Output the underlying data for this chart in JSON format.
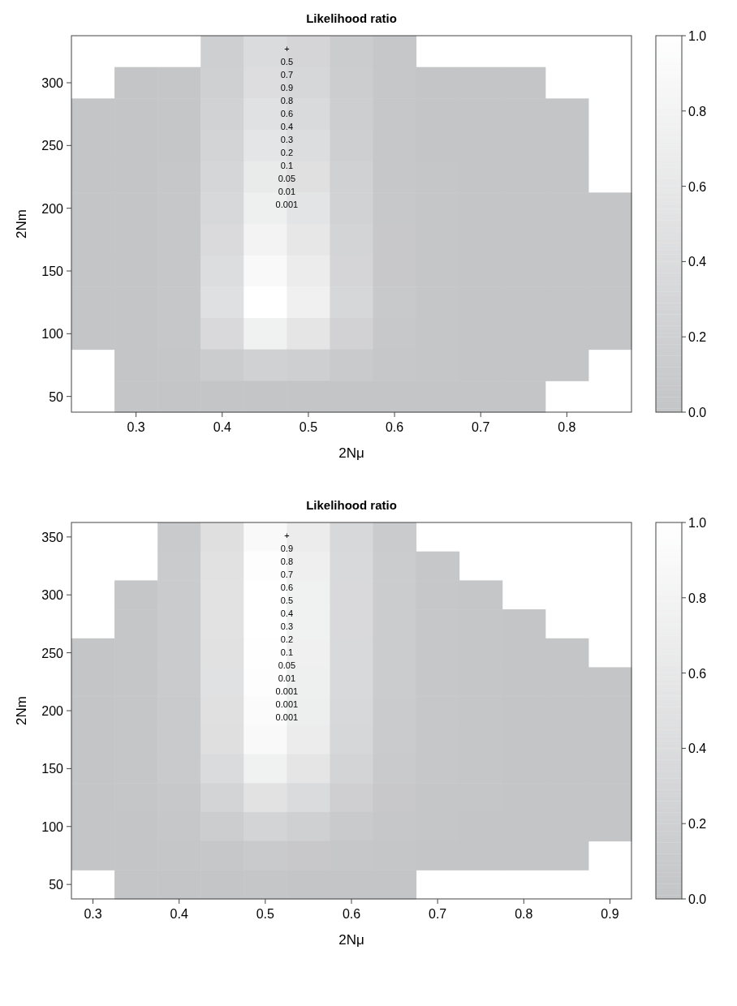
{
  "chart_data": [
    {
      "type": "heatmap",
      "title": "Likelihood ratio",
      "xlabel": "2Nμ",
      "ylabel": "2Nm",
      "clim": [
        0,
        1
      ],
      "cticks": [
        {
          "value": 0,
          "label": "0.0"
        },
        {
          "value": 0.2,
          "label": "0.2"
        },
        {
          "value": 0.4,
          "label": "0.4"
        },
        {
          "value": 0.6,
          "label": "0.6"
        },
        {
          "value": 0.8,
          "label": "0.8"
        },
        {
          "value": 1,
          "label": "1.0"
        }
      ],
      "categories": [
        null,
        "0.3",
        null,
        "0.4",
        null,
        "0.5",
        null,
        "0.6",
        null,
        "0.7",
        null,
        "0.8",
        null
      ],
      "y_categories": [
        null,
        "300",
        null,
        "250",
        null,
        "200",
        null,
        "150",
        null,
        "100",
        null,
        "50"
      ],
      "cells": [
        [
          null,
          null,
          null,
          0.17,
          0.38,
          0.28,
          0.12,
          0.03,
          null,
          null,
          null,
          null,
          null
        ],
        [
          null,
          0,
          0.02,
          0.19,
          0.42,
          0.31,
          0.13,
          0.03,
          0,
          0,
          0,
          null,
          null
        ],
        [
          0,
          0,
          0.02,
          0.22,
          0.48,
          0.36,
          0.15,
          0.03,
          0,
          0,
          0,
          0,
          null
        ],
        [
          0,
          0,
          0.02,
          0.25,
          0.55,
          0.41,
          0.17,
          0.04,
          0,
          0,
          0,
          0,
          null
        ],
        [
          0,
          0,
          0.03,
          0.29,
          0.63,
          0.47,
          0.2,
          0.04,
          0.01,
          0,
          0,
          0,
          null
        ],
        [
          0,
          0,
          0.03,
          0.33,
          0.72,
          0.53,
          0.22,
          0.05,
          0.01,
          0,
          0,
          0,
          0
        ],
        [
          0,
          0,
          0.03,
          0.37,
          0.8,
          0.59,
          0.25,
          0.06,
          0.01,
          0,
          0,
          0,
          0
        ],
        [
          0,
          0,
          0.04,
          0.41,
          0.9,
          0.67,
          0.28,
          0.06,
          0.01,
          0,
          0,
          0,
          0
        ],
        [
          0,
          0,
          0.04,
          0.46,
          1,
          0.74,
          0.31,
          0.07,
          0.01,
          0,
          0,
          0,
          0
        ],
        [
          0,
          0,
          0.03,
          0.35,
          0.75,
          0.56,
          0.23,
          0.05,
          0.01,
          0,
          0,
          0,
          0
        ],
        [
          null,
          0,
          0.02,
          0.12,
          0.2,
          0.17,
          0.09,
          0.03,
          0.01,
          0,
          0,
          0,
          null
        ],
        [
          null,
          0,
          0,
          0,
          0,
          0,
          0,
          0,
          0,
          0,
          0,
          null,
          null
        ]
      ],
      "annotations": [
        "+",
        "0.5",
        "0.7",
        "0.9",
        "0.8",
        "0.6",
        "0.4",
        "0.3",
        "0.2",
        "0.1",
        "0.05",
        "0.01",
        "0.001"
      ]
    },
    {
      "type": "heatmap",
      "title": "Likelihood ratio",
      "xlabel": "2Nμ",
      "ylabel": "2Nm",
      "clim": [
        0,
        1
      ],
      "cticks": [
        {
          "value": 0,
          "label": "0.0"
        },
        {
          "value": 0.2,
          "label": "0.2"
        },
        {
          "value": 0.4,
          "label": "0.4"
        },
        {
          "value": 0.6,
          "label": "0.6"
        },
        {
          "value": 0.8,
          "label": "0.8"
        },
        {
          "value": 1,
          "label": "1.0"
        }
      ],
      "categories": [
        "0.3",
        null,
        "0.4",
        null,
        "0.5",
        null,
        "0.6",
        null,
        "0.7",
        null,
        "0.8",
        null,
        "0.9"
      ],
      "y_categories": [
        "350",
        null,
        "300",
        null,
        "250",
        null,
        "200",
        null,
        "150",
        null,
        "100",
        null,
        "50"
      ],
      "cells": [
        [
          null,
          null,
          0.09,
          0.45,
          0.9,
          0.68,
          0.32,
          0.11,
          null,
          null,
          null,
          null,
          null
        ],
        [
          null,
          null,
          0.1,
          0.49,
          0.97,
          0.73,
          0.34,
          0.12,
          0.04,
          null,
          null,
          null,
          null
        ],
        [
          null,
          0.01,
          0.1,
          0.5,
          1,
          0.75,
          0.35,
          0.12,
          0.04,
          0.01,
          null,
          null,
          null
        ],
        [
          null,
          0.01,
          0.1,
          0.5,
          1,
          0.75,
          0.35,
          0.12,
          0.04,
          0.01,
          0,
          null,
          null
        ],
        [
          0,
          0.01,
          0.1,
          0.49,
          0.98,
          0.74,
          0.34,
          0.12,
          0.04,
          0.01,
          0,
          0,
          null
        ],
        [
          0,
          0.01,
          0.1,
          0.48,
          0.96,
          0.72,
          0.34,
          0.12,
          0.04,
          0.01,
          0,
          0,
          0
        ],
        [
          0,
          0.01,
          0.09,
          0.47,
          0.93,
          0.7,
          0.33,
          0.11,
          0.04,
          0.01,
          0,
          0,
          0
        ],
        [
          0,
          0.01,
          0.09,
          0.45,
          0.89,
          0.67,
          0.31,
          0.11,
          0.04,
          0.01,
          0,
          0,
          0
        ],
        [
          0,
          0.01,
          0.08,
          0.38,
          0.75,
          0.56,
          0.26,
          0.09,
          0.03,
          0.01,
          0,
          0,
          0
        ],
        [
          0,
          0.01,
          0.05,
          0.25,
          0.5,
          0.38,
          0.18,
          0.06,
          0.02,
          0.01,
          0,
          0,
          0
        ],
        [
          0,
          0,
          0.03,
          0.13,
          0.25,
          0.19,
          0.09,
          0.03,
          0.01,
          0,
          0,
          0,
          0
        ],
        [
          0,
          0,
          0.01,
          0.04,
          0.08,
          0.06,
          0.03,
          0.01,
          0,
          0,
          0,
          0,
          null
        ],
        [
          null,
          0,
          0,
          0,
          0.01,
          0,
          0,
          0,
          null,
          null,
          null,
          null,
          null
        ]
      ],
      "annotations": [
        "+",
        "0.9",
        "0.8",
        "0.7",
        "0.6",
        "0.5",
        "0.4",
        "0.3",
        "0.2",
        "0.1",
        "0.05",
        "0.01",
        "0.001",
        "0.001",
        "0.001"
      ]
    }
  ]
}
